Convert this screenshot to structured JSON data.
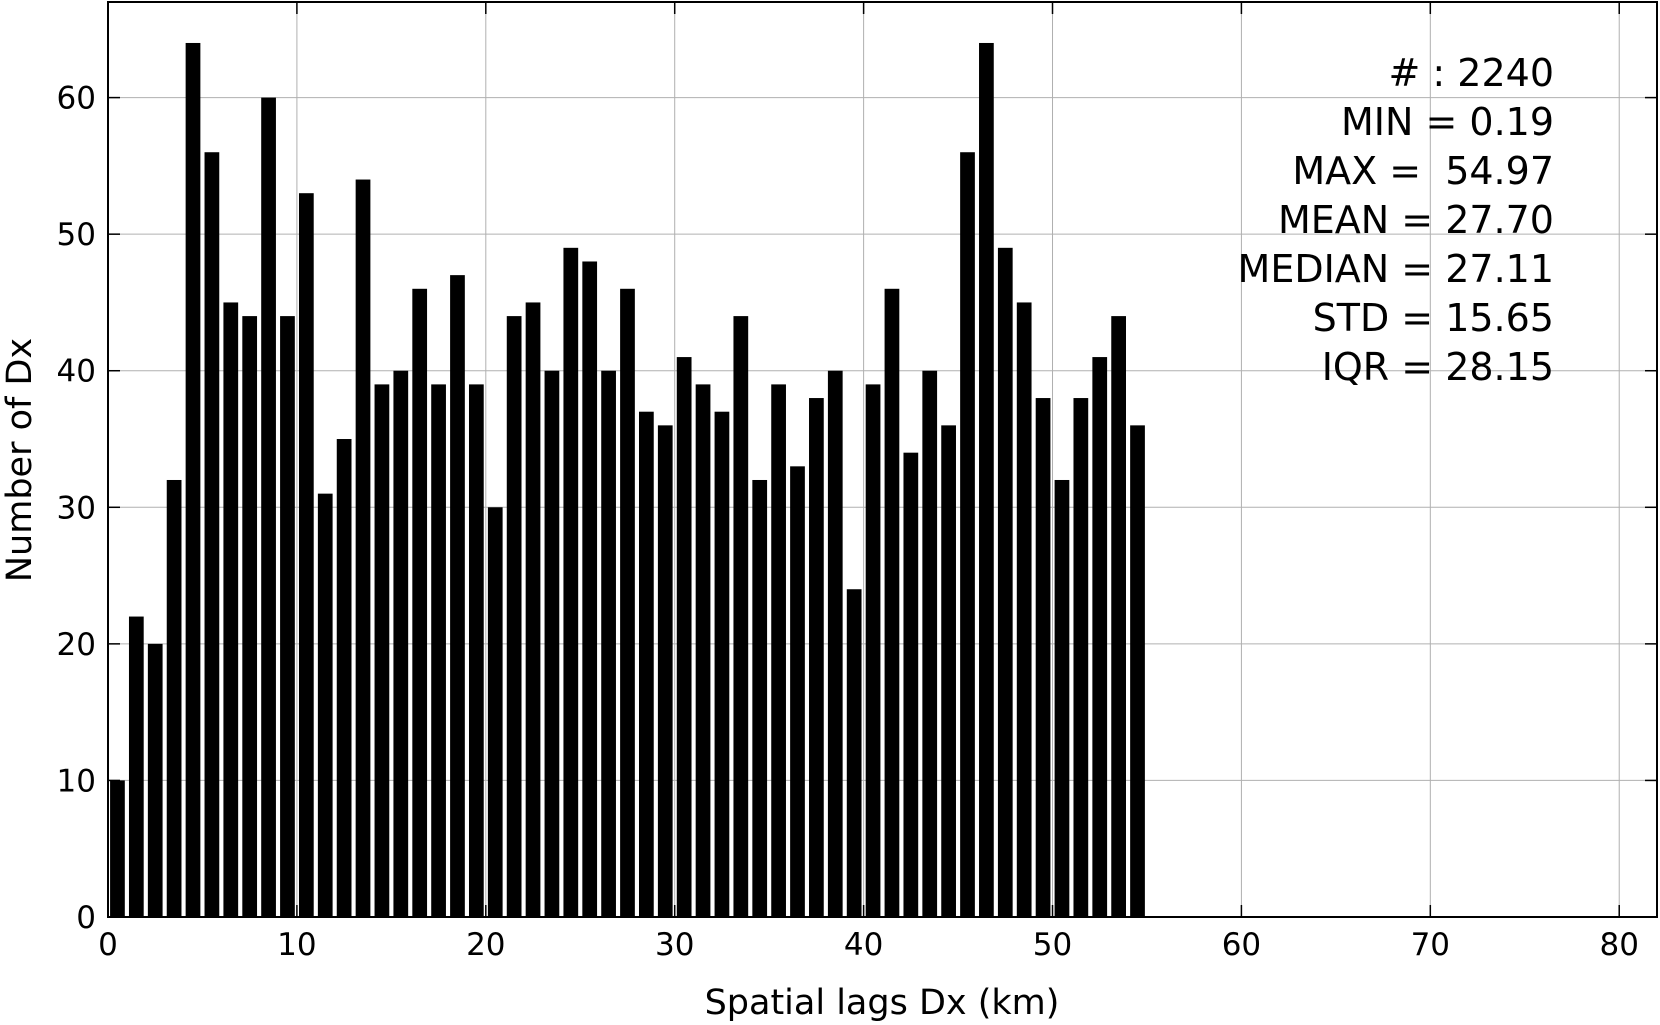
{
  "chart_data": {
    "type": "bar",
    "xlabel": "Spatial lags Dx (km)",
    "ylabel": "Number of Dx",
    "xlim": [
      0,
      82
    ],
    "ylim": [
      0,
      67
    ],
    "xticks": [
      0,
      10,
      20,
      30,
      40,
      50,
      60,
      70,
      80
    ],
    "yticks": [
      0,
      10,
      20,
      30,
      40,
      50,
      60
    ],
    "grid": true,
    "bar_color": "#000000",
    "bin_width": 1,
    "x": [
      0.5,
      1.5,
      2.5,
      3.5,
      4.5,
      5.5,
      6.5,
      7.5,
      8.5,
      9.5,
      10.5,
      11.5,
      12.5,
      13.5,
      14.5,
      15.5,
      16.5,
      17.5,
      18.5,
      19.5,
      20.5,
      21.5,
      22.5,
      23.5,
      24.5,
      25.5,
      26.5,
      27.5,
      28.5,
      29.5,
      30.5,
      31.5,
      32.5,
      33.5,
      34.5,
      35.5,
      36.5,
      37.5,
      38.5,
      39.5,
      40.5,
      41.5,
      42.5,
      43.5,
      44.5,
      45.5,
      46.5,
      47.5,
      48.5,
      49.5,
      50.5,
      51.5,
      52.5,
      53.5,
      54.5
    ],
    "values": [
      10,
      22,
      20,
      32,
      64,
      56,
      45,
      44,
      60,
      44,
      53,
      31,
      35,
      54,
      39,
      40,
      46,
      39,
      47,
      39,
      30,
      44,
      45,
      40,
      49,
      48,
      40,
      46,
      37,
      36,
      41,
      39,
      37,
      44,
      32,
      39,
      33,
      38,
      40,
      24,
      39,
      46,
      34,
      40,
      36,
      56,
      64,
      49,
      45,
      38,
      32,
      38,
      41,
      44,
      36
    ],
    "annotations": [
      "# : 2240",
      "MIN = 0.19",
      "MAX =  54.97",
      "MEAN = 27.70",
      "MEDIAN = 27.11",
      "STD = 15.65",
      "IQR = 28.15"
    ]
  }
}
